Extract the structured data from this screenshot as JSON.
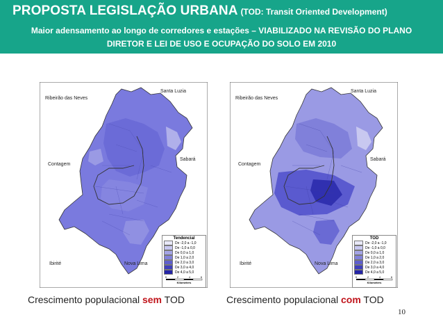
{
  "header": {
    "title": "PROPOSTA LEGISLAÇÃO URBANA",
    "title_note": "(TOD: Transit Oriented Development)",
    "subtitle_line1": "Maior adensamento ao longo de corredores e estações – VIABILIZADO NA REVISÃO DO PLANO",
    "subtitle_line2": "DIRETOR E LEI DE USO E OCUPAÇÃO DO SOLO EM 2010",
    "bg_color": "#17a58a"
  },
  "maps": [
    {
      "cities": {
        "santa_luzia": "Santa Luzia",
        "ribeirao": "Ribeirão das Neves",
        "contagem": "Contagem",
        "sabara": "Sabará",
        "ibirite": "Ibirité",
        "nova_lima": "Nova Lima"
      },
      "legend": {
        "title": "Tendencial",
        "items": [
          "De -2,0 a -1,0",
          "De -1,0 a 0,0",
          "De 0,0 a 1,0",
          "De 1,0 a 2,0",
          "De 2,0 a 3,0",
          "De 3,0 a 4,0",
          "De 4,0 a 5,0"
        ],
        "colors": [
          "#e8e8f8",
          "#c7c7f0",
          "#a4a4e6",
          "#8181da",
          "#5f5fcc",
          "#3e3ebd",
          "#2424a8"
        ],
        "scale": [
          "0",
          "2",
          "4",
          "6"
        ],
        "unit": "Kilometers"
      },
      "caption_prefix": "Crescimento populacional ",
      "caption_highlight": "sem",
      "caption_suffix": " TOD"
    },
    {
      "cities": {
        "santa_luzia": "Santa Luzia",
        "ribeirao": "Ribeirão das Neves",
        "contagem": "Contagem",
        "sabara": "Sabará",
        "ibirite": "Ibirité",
        "nova_lima": "Nova Lima"
      },
      "legend": {
        "title": "TOD",
        "items": [
          "De -2,0 a -1,0",
          "De -1,0 a 0,0",
          "De 0,0 a 1,0",
          "De 1,0 a 2,0",
          "De 2,0 a 3,0",
          "De 3,0 a 4,0",
          "De 4,0 a 5,0"
        ],
        "colors": [
          "#e8e8f8",
          "#c7c7f0",
          "#a4a4e6",
          "#8181da",
          "#5f5fcc",
          "#3e3ebd",
          "#2424a8"
        ],
        "scale": [
          "0",
          "2",
          "4",
          "6"
        ],
        "unit": "Kilometers"
      },
      "caption_prefix": "Crescimento populacional ",
      "caption_highlight": "com",
      "caption_suffix": " TOD"
    }
  ],
  "page_number": "10"
}
